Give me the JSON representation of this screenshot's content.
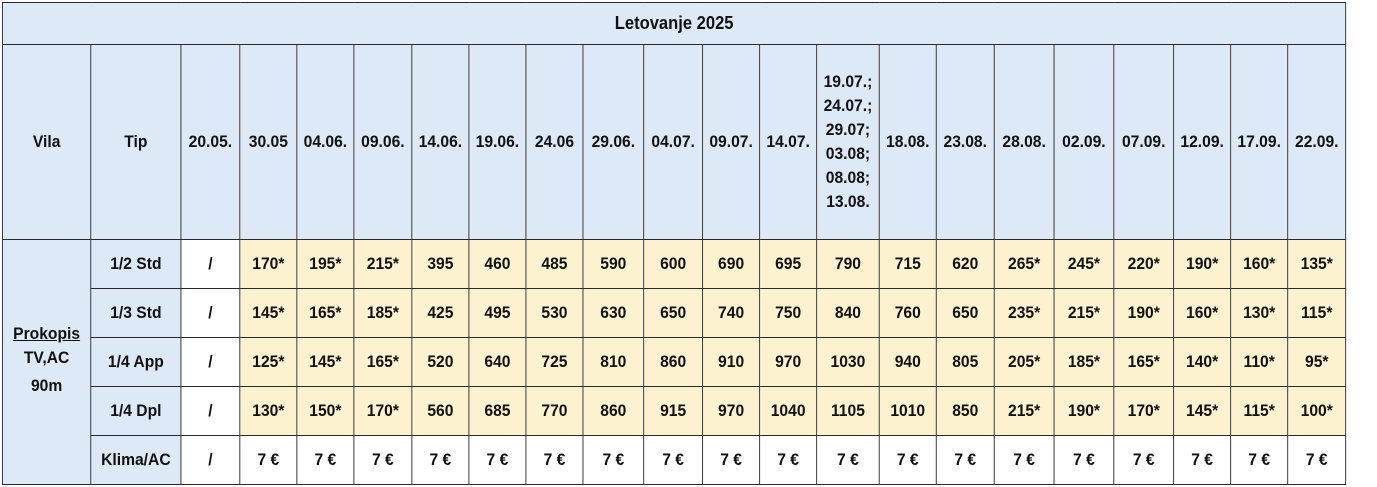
{
  "title": "Letovanje 2025",
  "headers": {
    "vila": "Vila",
    "tip": "Tip",
    "dates": [
      "20.05.",
      "30.05",
      "04.06.",
      "09.06.",
      "14.06.",
      "19.06.",
      "24.06",
      "29.06.",
      "04.07.",
      "09.07.",
      "14.07.",
      "19.07.; 24.07.; 29.07; 03.08; 08.08; 13.08.",
      "18.08.",
      "23.08.",
      "28.08.",
      "02.09.",
      "07.09.",
      "12.09.",
      "17.09.",
      "22.09."
    ],
    "multi_date_lines": [
      "19.07.;",
      "24.07.;",
      "29.07;",
      "03.08;",
      "08.08;",
      "13.08."
    ]
  },
  "villa": {
    "name": "Prokopis",
    "features": "TV,AC",
    "distance": "90m"
  },
  "rows": [
    {
      "tip": "1/2 Std",
      "values": [
        "/",
        "170*",
        "195*",
        "215*",
        "395",
        "460",
        "485",
        "590",
        "600",
        "690",
        "695",
        "790",
        "715",
        "620",
        "265*",
        "245*",
        "220*",
        "190*",
        "160*",
        "135*"
      ]
    },
    {
      "tip": "1/3 Std",
      "values": [
        "/",
        "145*",
        "165*",
        "185*",
        "425",
        "495",
        "530",
        "630",
        "650",
        "740",
        "750",
        "840",
        "760",
        "650",
        "235*",
        "215*",
        "190*",
        "160*",
        "130*",
        "115*"
      ]
    },
    {
      "tip": "1/4 App",
      "values": [
        "/",
        "125*",
        "145*",
        "165*",
        "520",
        "640",
        "725",
        "810",
        "860",
        "910",
        "970",
        "1030",
        "940",
        "805",
        "205*",
        "185*",
        "165*",
        "140*",
        "110*",
        "95*"
      ]
    },
    {
      "tip": "1/4 Dpl",
      "values": [
        "/",
        "130*",
        "150*",
        "170*",
        "560",
        "685",
        "770",
        "860",
        "915",
        "970",
        "1040",
        "1105",
        "1010",
        "850",
        "215*",
        "190*",
        "170*",
        "145*",
        "115*",
        "100*"
      ]
    },
    {
      "tip": "Klima/AC",
      "values": [
        "/",
        "7 €",
        "7 €",
        "7 €",
        "7 €",
        "7 €",
        "7 €",
        "7 €",
        "7 €",
        "7 €",
        "7 €",
        "7 €",
        "7 €",
        "7 €",
        "7 €",
        "7 €",
        "7 €",
        "7 €",
        "7 €",
        "7 €"
      ]
    }
  ],
  "colors": {
    "header_bg": "#dde9f6",
    "highlight_bg": "#fdf2cf",
    "border": "#2a2a2a"
  }
}
